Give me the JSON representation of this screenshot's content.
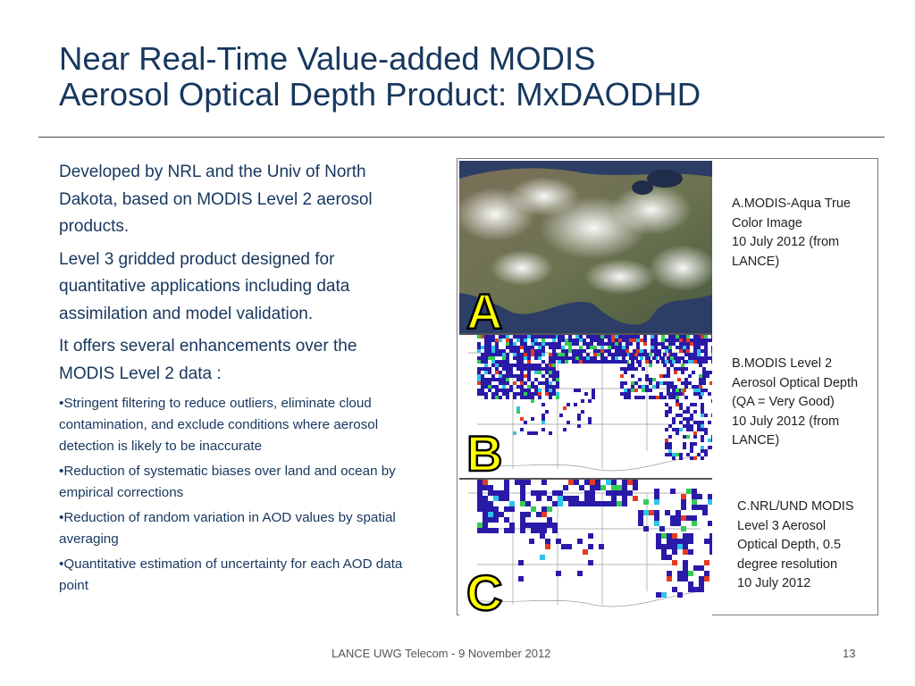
{
  "title": {
    "line1": "Near Real-Time Value-added MODIS",
    "line2": "Aerosol Optical Depth Product: MxDAODHD"
  },
  "body": {
    "paragraphs": [
      "Developed by NRL and the Univ of North Dakota, based on MODIS Level 2 aerosol products.",
      "Level 3 gridded product designed for quantitative applications including data assimilation and model validation.",
      "It offers several enhancements over the MODIS Level 2 data :"
    ],
    "bullets": [
      "•Stringent filtering to reduce outliers, eliminate cloud contamination, and exclude conditions where aerosol detection is likely to be inaccurate",
      "•Reduction of systematic biases over land and ocean by empirical corrections",
      "•Reduction of random variation in AOD values by spatial averaging",
      "•Quantitative estimation of uncertainty for each AOD data point"
    ]
  },
  "figure": {
    "panels": [
      {
        "letter": "A",
        "caption": [
          "A.MODIS-Aqua True",
          "Color Image",
          "10 July 2012 (from",
          "LANCE)"
        ]
      },
      {
        "letter": "B",
        "caption": [
          "B.MODIS Level 2",
          "Aerosol Optical Depth",
          "(QA = Very Good)",
          "10 July 2012 (from",
          "LANCE)"
        ]
      },
      {
        "letter": "C",
        "caption": [
          "C.NRL/UND MODIS",
          "Level 3 Aerosol",
          "Optical Depth, 0.5",
          "degree resolution",
          "10 July 2012"
        ]
      }
    ],
    "colors": {
      "letter_fill": "#ffff00",
      "aod_low": "#2a1aa8",
      "aod_high": "#e63b1e"
    }
  },
  "footer": {
    "center": "LANCE UWG Telecom - 9 November 2012",
    "page": "13"
  }
}
